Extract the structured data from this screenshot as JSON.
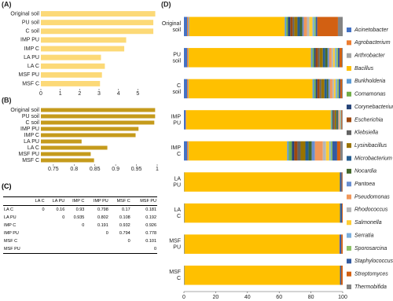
{
  "chart_data": [
    {
      "type": "bar",
      "panel_label": "(A)",
      "categories": [
        "Original soil",
        "PU soil",
        "C soil",
        "IMP PU",
        "IMP C",
        "LA PU",
        "LA C",
        "MSF PU",
        "MSF C"
      ],
      "values": [
        5.9,
        5.8,
        5.8,
        4.4,
        4.3,
        3.1,
        3.3,
        3.15,
        3.05
      ],
      "color": "#fcd977",
      "xlim": [
        0,
        6
      ],
      "xticks": [
        0,
        1,
        2,
        3,
        4,
        5
      ]
    },
    {
      "type": "bar",
      "panel_label": "(B)",
      "categories": [
        "Original soil",
        "PU soil",
        "C soil",
        "IMP PU",
        "IMP C",
        "LA PU",
        "LA C",
        "MSF PU",
        "MSF C"
      ],
      "values": [
        0.995,
        0.995,
        0.993,
        0.955,
        0.948,
        0.818,
        0.88,
        0.84,
        0.848
      ],
      "color": "#c59b1c",
      "xlim": [
        0.72,
        1.0
      ],
      "xticks": [
        0.75,
        0.8,
        0.85,
        0.9,
        0.95,
        1
      ]
    },
    {
      "type": "stacked_bar",
      "panel_label": "(D)",
      "categories": [
        "Original soil",
        "PU soil",
        "C soil",
        "IMP PU",
        "IMP C",
        "LA PU",
        "LA C",
        "MSF PU",
        "MSF C"
      ],
      "xlim": [
        0,
        100
      ],
      "xticks": [
        0,
        20,
        40,
        60,
        80,
        100
      ],
      "legend": "right",
      "series": [
        {
          "name": "Acinetobacter",
          "color": "#4472c4",
          "values": [
            2,
            2,
            2,
            1,
            2,
            0.2,
            0.3,
            0.3,
            0.3
          ]
        },
        {
          "name": "Agrobacterium",
          "color": "#ed7d31",
          "values": [
            0.5,
            0.5,
            0.5,
            0.3,
            0.5,
            0,
            0,
            0,
            0
          ]
        },
        {
          "name": "Arthrobacter",
          "color": "#a5a5a5",
          "values": [
            1,
            0.5,
            0.5,
            0.2,
            0.5,
            0,
            0,
            0,
            0
          ]
        },
        {
          "name": "Bacillus",
          "color": "#ffc000",
          "values": [
            60,
            77,
            78,
            91,
            62,
            98,
            98,
            97.5,
            98
          ]
        },
        {
          "name": "Burkholderia",
          "color": "#5b9bd5",
          "values": [
            1,
            1,
            1,
            0.5,
            1,
            0,
            0,
            0,
            0
          ]
        },
        {
          "name": "Comamonas",
          "color": "#70ad47",
          "values": [
            1,
            1,
            1,
            0.5,
            2,
            0,
            0,
            0,
            0
          ]
        },
        {
          "name": "Corynebacterium",
          "color": "#264478",
          "values": [
            1.5,
            1,
            1,
            0.5,
            1.5,
            0,
            0,
            0,
            0
          ]
        },
        {
          "name": "Escherichia",
          "color": "#9e480e",
          "values": [
            1.5,
            1.5,
            1.5,
            0.5,
            2,
            0,
            0,
            0,
            0
          ]
        },
        {
          "name": "Klebsiella",
          "color": "#636363",
          "values": [
            1,
            1,
            1,
            0.5,
            2,
            0,
            0,
            0,
            0
          ]
        },
        {
          "name": "Lysinibacillus",
          "color": "#997300",
          "values": [
            2,
            2,
            2,
            1,
            3,
            0,
            0,
            0,
            0
          ]
        },
        {
          "name": "Microbacterium",
          "color": "#255e91",
          "values": [
            1.5,
            1.5,
            1.5,
            0.5,
            2,
            0.3,
            0.5,
            0,
            0
          ]
        },
        {
          "name": "Nocardia",
          "color": "#43682b",
          "values": [
            1.5,
            1.5,
            1,
            0.5,
            2,
            0,
            0,
            0,
            0
          ]
        },
        {
          "name": "Pantoea",
          "color": "#698ed0",
          "values": [
            1,
            1,
            1,
            0.3,
            2,
            0,
            0,
            0,
            0
          ]
        },
        {
          "name": "Pseudomonas",
          "color": "#f1975a",
          "values": [
            2,
            1.5,
            1.5,
            0.5,
            5,
            0,
            0,
            0.3,
            0
          ]
        },
        {
          "name": "Rhodococcus",
          "color": "#b7b7b7",
          "values": [
            1.5,
            1,
            1,
            0.3,
            2,
            0,
            0,
            0,
            0
          ]
        },
        {
          "name": "Salmonella",
          "color": "#ffcd33",
          "values": [
            2,
            1,
            1,
            0.3,
            2,
            0,
            0,
            0,
            0
          ]
        },
        {
          "name": "Serratia",
          "color": "#7cafdd",
          "values": [
            1,
            1,
            1,
            0.3,
            1,
            0,
            0,
            0,
            0
          ]
        },
        {
          "name": "Sporosarcina",
          "color": "#8cc168",
          "values": [
            1,
            1,
            1,
            0.2,
            1,
            0,
            0,
            0,
            0
          ]
        },
        {
          "name": "Staphylococcus",
          "color": "#335aa1",
          "values": [
            1,
            1,
            1,
            0.2,
            3,
            0.8,
            0.7,
            1,
            0.7
          ]
        },
        {
          "name": "Streptomyces",
          "color": "#d26012",
          "values": [
            13,
            1.5,
            1,
            0.5,
            2,
            0.5,
            0.5,
            0.9,
            1
          ]
        },
        {
          "name": "Thermobifida",
          "color": "#848484",
          "values": [
            3,
            0.5,
            0.5,
            0.4,
            1.5,
            0.2,
            0,
            0,
            0
          ]
        }
      ]
    }
  ],
  "table": {
    "panel_label": "(C)",
    "columns": [
      "LA C",
      "LA PU",
      "IMP C",
      "IMP PU",
      "MSF C",
      "MSF PU"
    ],
    "rows": [
      {
        "label": "LA C",
        "cells": [
          0,
          0.16,
          0.93,
          0.798,
          0.17,
          0.181
        ]
      },
      {
        "label": "LA PU",
        "cells": [
          null,
          0,
          0.935,
          0.802,
          0.108,
          0.192
        ]
      },
      {
        "label": "IMP C",
        "cells": [
          null,
          null,
          0,
          0.191,
          0.932,
          0.926
        ]
      },
      {
        "label": "IMP PU",
        "cells": [
          null,
          null,
          null,
          0,
          0.794,
          0.778
        ]
      },
      {
        "label": "MSF C",
        "cells": [
          null,
          null,
          null,
          null,
          0,
          0.101
        ]
      },
      {
        "label": "MSF PU",
        "cells": [
          null,
          null,
          null,
          null,
          null,
          0
        ]
      }
    ]
  }
}
